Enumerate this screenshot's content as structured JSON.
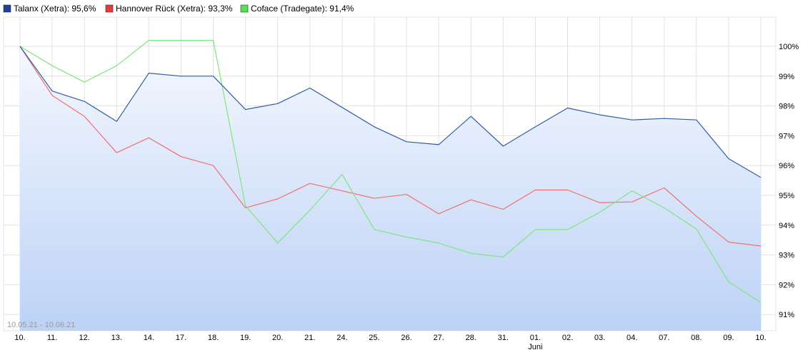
{
  "chart_data": {
    "type": "line",
    "title": "",
    "date_range": "10.05.21 - 10.06.21",
    "x_categories": [
      "10.",
      "11.",
      "12.",
      "13.",
      "14.",
      "17.",
      "18.",
      "19.",
      "20.",
      "21.",
      "24.",
      "25.",
      "26.",
      "27.",
      "28.",
      "31.",
      "01.",
      "02.",
      "03.",
      "04.",
      "07.",
      "08.",
      "09.",
      "10."
    ],
    "x_secondary": [
      {
        "index": 16,
        "label": "Juni"
      }
    ],
    "y_ticks": [
      "100%",
      "99%",
      "98%",
      "97%",
      "96%",
      "95%",
      "94%",
      "93%",
      "92%",
      "91%"
    ],
    "ylim": [
      90.5,
      101.0
    ],
    "grid": true,
    "legend_position": "top-left",
    "series": [
      {
        "name": "Talanx (Xetra): 95,6%",
        "color": "#2e5ea6",
        "legend_color": "#1f3f99",
        "fill": true,
        "values": [
          100.0,
          98.5,
          98.15,
          97.48,
          99.1,
          99.0,
          99.0,
          97.88,
          98.08,
          98.6,
          97.95,
          97.3,
          96.8,
          96.7,
          97.65,
          96.65,
          97.3,
          97.93,
          97.7,
          97.53,
          97.58,
          97.53,
          96.23,
          95.6
        ]
      },
      {
        "name": "Hannover Rück (Xetra): 93,3%",
        "color": "#f07070",
        "legend_color": "#e63b3b",
        "fill": false,
        "values": [
          100.0,
          98.35,
          97.65,
          96.43,
          96.93,
          96.3,
          96.0,
          94.58,
          94.88,
          95.4,
          95.15,
          94.9,
          95.03,
          94.38,
          94.85,
          94.53,
          95.18,
          95.18,
          94.75,
          94.78,
          95.25,
          94.3,
          93.43,
          93.3
        ]
      },
      {
        "name": "Coface (Tradegate): 91,4%",
        "color": "#7fe57f",
        "legend_color": "#55e055",
        "fill": false,
        "values": [
          100.0,
          99.35,
          98.8,
          99.35,
          100.2,
          100.2,
          100.2,
          94.65,
          93.4,
          94.5,
          95.7,
          93.85,
          93.6,
          93.4,
          93.05,
          92.93,
          93.85,
          93.85,
          94.43,
          95.15,
          94.58,
          93.87,
          92.1,
          91.4
        ]
      }
    ]
  }
}
